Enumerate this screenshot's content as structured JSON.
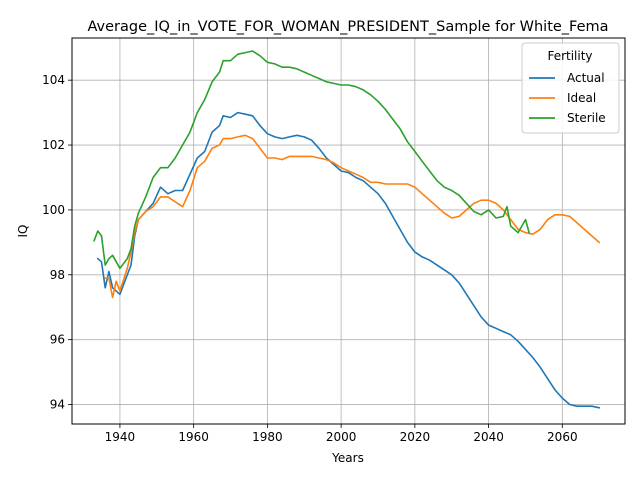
{
  "chart_data": {
    "type": "line",
    "title": "Average_IQ_in_VOTE_FOR_WOMAN_PRESIDENT_Sample for White_Fema",
    "xlabel": "Years",
    "ylabel": "IQ",
    "xlim": [
      1927,
      2077
    ],
    "ylim": [
      93.4,
      105.3
    ],
    "xticks": [
      1940,
      1960,
      1980,
      2000,
      2020,
      2040,
      2060
    ],
    "yticks": [
      94,
      96,
      98,
      100,
      102,
      104
    ],
    "grid": true,
    "legend": {
      "title": "Fertility",
      "placement": "upper right"
    },
    "series": [
      {
        "name": "Actual",
        "color": "#1f77b4",
        "points": [
          [
            1934,
            98.5
          ],
          [
            1935,
            98.4
          ],
          [
            1936,
            97.6
          ],
          [
            1937,
            98.1
          ],
          [
            1938,
            97.6
          ],
          [
            1940,
            97.4
          ],
          [
            1942,
            98.0
          ],
          [
            1943,
            98.3
          ],
          [
            1944,
            99.2
          ],
          [
            1945,
            99.7
          ],
          [
            1947,
            99.95
          ],
          [
            1949,
            100.2
          ],
          [
            1951,
            100.7
          ],
          [
            1953,
            100.5
          ],
          [
            1955,
            100.6
          ],
          [
            1957,
            100.6
          ],
          [
            1959,
            101.1
          ],
          [
            1961,
            101.6
          ],
          [
            1963,
            101.8
          ],
          [
            1965,
            102.4
          ],
          [
            1967,
            102.6
          ],
          [
            1968,
            102.9
          ],
          [
            1970,
            102.85
          ],
          [
            1972,
            103.0
          ],
          [
            1974,
            102.95
          ],
          [
            1976,
            102.9
          ],
          [
            1978,
            102.6
          ],
          [
            1980,
            102.35
          ],
          [
            1982,
            102.25
          ],
          [
            1984,
            102.2
          ],
          [
            1986,
            102.25
          ],
          [
            1988,
            102.3
          ],
          [
            1990,
            102.25
          ],
          [
            1992,
            102.15
          ],
          [
            1994,
            101.9
          ],
          [
            1996,
            101.6
          ],
          [
            1998,
            101.4
          ],
          [
            2000,
            101.2
          ],
          [
            2002,
            101.15
          ],
          [
            2004,
            101.0
          ],
          [
            2006,
            100.9
          ],
          [
            2008,
            100.7
          ],
          [
            2010,
            100.5
          ],
          [
            2012,
            100.2
          ],
          [
            2014,
            99.8
          ],
          [
            2016,
            99.4
          ],
          [
            2018,
            99.0
          ],
          [
            2020,
            98.7
          ],
          [
            2022,
            98.55
          ],
          [
            2024,
            98.45
          ],
          [
            2026,
            98.3
          ],
          [
            2028,
            98.15
          ],
          [
            2030,
            98.0
          ],
          [
            2032,
            97.75
          ],
          [
            2034,
            97.4
          ],
          [
            2036,
            97.05
          ],
          [
            2038,
            96.7
          ],
          [
            2040,
            96.45
          ],
          [
            2042,
            96.35
          ],
          [
            2044,
            96.25
          ],
          [
            2046,
            96.15
          ],
          [
            2048,
            95.95
          ],
          [
            2050,
            95.7
          ],
          [
            2052,
            95.45
          ],
          [
            2054,
            95.15
          ],
          [
            2056,
            94.8
          ],
          [
            2058,
            94.45
          ],
          [
            2060,
            94.2
          ],
          [
            2062,
            94.0
          ],
          [
            2064,
            93.95
          ],
          [
            2066,
            93.95
          ],
          [
            2068,
            93.95
          ],
          [
            2070,
            93.9
          ]
        ]
      },
      {
        "name": "Ideal",
        "color": "#ff7f0e",
        "points": [
          [
            1936,
            97.9
          ],
          [
            1937,
            97.9
          ],
          [
            1938,
            97.3
          ],
          [
            1939,
            97.8
          ],
          [
            1940,
            97.5
          ],
          [
            1942,
            98.2
          ],
          [
            1943,
            98.7
          ],
          [
            1944,
            99.3
          ],
          [
            1945,
            99.7
          ],
          [
            1947,
            99.95
          ],
          [
            1949,
            100.1
          ],
          [
            1951,
            100.4
          ],
          [
            1953,
            100.4
          ],
          [
            1955,
            100.25
          ],
          [
            1957,
            100.1
          ],
          [
            1959,
            100.6
          ],
          [
            1961,
            101.3
          ],
          [
            1963,
            101.5
          ],
          [
            1965,
            101.9
          ],
          [
            1967,
            102.0
          ],
          [
            1968,
            102.2
          ],
          [
            1970,
            102.2
          ],
          [
            1972,
            102.25
          ],
          [
            1974,
            102.3
          ],
          [
            1976,
            102.2
          ],
          [
            1978,
            101.9
          ],
          [
            1980,
            101.6
          ],
          [
            1982,
            101.6
          ],
          [
            1984,
            101.55
          ],
          [
            1986,
            101.65
          ],
          [
            1988,
            101.65
          ],
          [
            1990,
            101.65
          ],
          [
            1992,
            101.65
          ],
          [
            1994,
            101.6
          ],
          [
            1996,
            101.55
          ],
          [
            1998,
            101.45
          ],
          [
            2000,
            101.3
          ],
          [
            2002,
            101.2
          ],
          [
            2004,
            101.1
          ],
          [
            2006,
            101.0
          ],
          [
            2008,
            100.85
          ],
          [
            2010,
            100.85
          ],
          [
            2012,
            100.8
          ],
          [
            2014,
            100.8
          ],
          [
            2016,
            100.8
          ],
          [
            2018,
            100.8
          ],
          [
            2020,
            100.7
          ],
          [
            2022,
            100.5
          ],
          [
            2024,
            100.3
          ],
          [
            2026,
            100.1
          ],
          [
            2028,
            99.9
          ],
          [
            2030,
            99.75
          ],
          [
            2032,
            99.8
          ],
          [
            2034,
            100.0
          ],
          [
            2036,
            100.2
          ],
          [
            2038,
            100.3
          ],
          [
            2040,
            100.3
          ],
          [
            2042,
            100.2
          ],
          [
            2044,
            100.0
          ],
          [
            2046,
            99.7
          ],
          [
            2048,
            99.4
          ],
          [
            2050,
            99.3
          ],
          [
            2052,
            99.25
          ],
          [
            2054,
            99.4
          ],
          [
            2056,
            99.7
          ],
          [
            2058,
            99.85
          ],
          [
            2060,
            99.85
          ],
          [
            2062,
            99.8
          ],
          [
            2064,
            99.6
          ],
          [
            2066,
            99.4
          ],
          [
            2068,
            99.2
          ],
          [
            2070,
            99.0
          ]
        ]
      },
      {
        "name": "Sterile",
        "color": "#2ca02c",
        "points": [
          [
            1933,
            99.05
          ],
          [
            1934,
            99.35
          ],
          [
            1935,
            99.2
          ],
          [
            1936,
            98.3
          ],
          [
            1937,
            98.5
          ],
          [
            1938,
            98.6
          ],
          [
            1940,
            98.2
          ],
          [
            1942,
            98.5
          ],
          [
            1943,
            98.8
          ],
          [
            1944,
            99.5
          ],
          [
            1945,
            99.9
          ],
          [
            1947,
            100.4
          ],
          [
            1949,
            101.0
          ],
          [
            1951,
            101.3
          ],
          [
            1953,
            101.3
          ],
          [
            1955,
            101.6
          ],
          [
            1957,
            102.0
          ],
          [
            1959,
            102.4
          ],
          [
            1961,
            103.0
          ],
          [
            1963,
            103.4
          ],
          [
            1965,
            103.95
          ],
          [
            1967,
            104.25
          ],
          [
            1968,
            104.6
          ],
          [
            1970,
            104.6
          ],
          [
            1972,
            104.8
          ],
          [
            1974,
            104.85
          ],
          [
            1976,
            104.9
          ],
          [
            1978,
            104.75
          ],
          [
            1980,
            104.55
          ],
          [
            1982,
            104.5
          ],
          [
            1984,
            104.4
          ],
          [
            1986,
            104.4
          ],
          [
            1988,
            104.35
          ],
          [
            1990,
            104.25
          ],
          [
            1992,
            104.15
          ],
          [
            1994,
            104.05
          ],
          [
            1996,
            103.95
          ],
          [
            1998,
            103.9
          ],
          [
            2000,
            103.85
          ],
          [
            2002,
            103.85
          ],
          [
            2004,
            103.8
          ],
          [
            2006,
            103.7
          ],
          [
            2008,
            103.55
          ],
          [
            2010,
            103.35
          ],
          [
            2012,
            103.1
          ],
          [
            2014,
            102.8
          ],
          [
            2016,
            102.5
          ],
          [
            2018,
            102.1
          ],
          [
            2020,
            101.8
          ],
          [
            2022,
            101.5
          ],
          [
            2024,
            101.2
          ],
          [
            2026,
            100.9
          ],
          [
            2028,
            100.7
          ],
          [
            2030,
            100.6
          ],
          [
            2032,
            100.45
          ],
          [
            2034,
            100.2
          ],
          [
            2036,
            99.95
          ],
          [
            2038,
            99.85
          ],
          [
            2040,
            100.0
          ],
          [
            2042,
            99.75
          ],
          [
            2044,
            99.8
          ],
          [
            2045,
            100.1
          ],
          [
            2046,
            99.5
          ],
          [
            2048,
            99.3
          ],
          [
            2050,
            99.7
          ],
          [
            2051,
            99.3
          ]
        ]
      }
    ]
  }
}
